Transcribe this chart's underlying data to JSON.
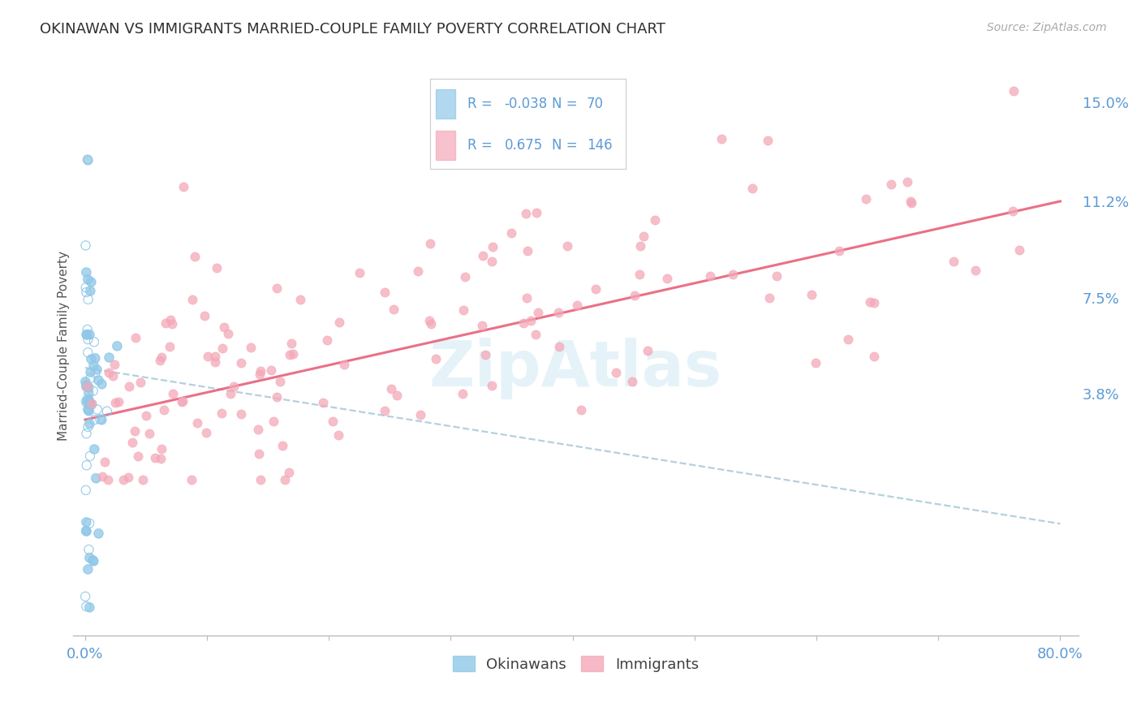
{
  "title": "OKINAWAN VS IMMIGRANTS MARRIED-COUPLE FAMILY POVERTY CORRELATION CHART",
  "source": "Source: ZipAtlas.com",
  "ylabel": "Married-Couple Family Poverty",
  "xlim_min": -0.01,
  "xlim_max": 0.815,
  "ylim_min": -0.055,
  "ylim_max": 0.168,
  "yticks": [
    0.038,
    0.075,
    0.112,
    0.15
  ],
  "ytick_labels": [
    "3.8%",
    "7.5%",
    "11.2%",
    "15.0%"
  ],
  "xtick_show": [
    0.0,
    0.8
  ],
  "xtick_labels_show": [
    "0.0%",
    "80.0%"
  ],
  "xtick_all": [
    0.0,
    0.1,
    0.2,
    0.3,
    0.4,
    0.5,
    0.6,
    0.7,
    0.8
  ],
  "okinawan_color": "#90c8e8",
  "immigrant_color": "#f4a8b8",
  "okinawan_R": -0.038,
  "okinawan_N": 70,
  "immigrant_R": 0.675,
  "immigrant_N": 146,
  "ok_trend_color": "#a8c8d8",
  "im_trend_color": "#e8607a",
  "watermark": "ZipAtlas",
  "background_color": "#ffffff",
  "grid_color": "#cccccc",
  "tick_color": "#5b9bd5",
  "title_color": "#303030",
  "legend_text_color": "#5b9bd5",
  "source_color": "#aaaaaa"
}
